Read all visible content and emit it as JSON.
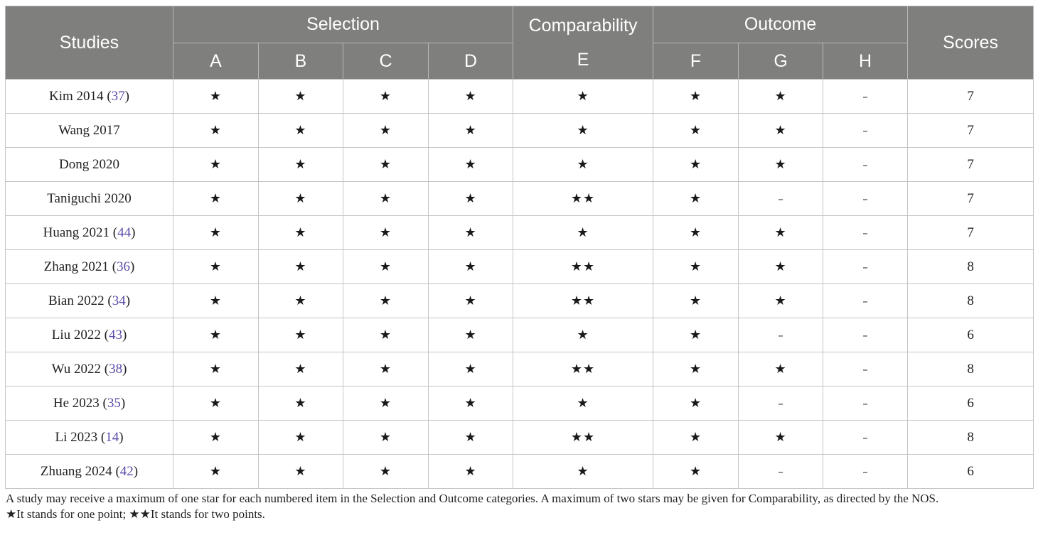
{
  "table": {
    "header": {
      "studies": "Studies",
      "selection": "Selection",
      "comparability": "Comparability",
      "outcome": "Outcome",
      "scores": "Scores",
      "sub": [
        "A",
        "B",
        "C",
        "D",
        "E",
        "F",
        "G",
        "H"
      ]
    },
    "rows": [
      {
        "study": "Kim 2014",
        "ref": "37",
        "cells": [
          "★",
          "★",
          "★",
          "★",
          "★",
          "★",
          "★",
          "–"
        ],
        "score": "7"
      },
      {
        "study": "Wang 2017",
        "ref": "",
        "cells": [
          "★",
          "★",
          "★",
          "★",
          "★",
          "★",
          "★",
          "–"
        ],
        "score": "7"
      },
      {
        "study": "Dong 2020",
        "ref": "",
        "cells": [
          "★",
          "★",
          "★",
          "★",
          "★",
          "★",
          "★",
          "–"
        ],
        "score": "7"
      },
      {
        "study": "Taniguchi 2020",
        "ref": "",
        "cells": [
          "★",
          "★",
          "★",
          "★",
          "★★",
          "★",
          "–",
          "–"
        ],
        "score": "7"
      },
      {
        "study": "Huang 2021",
        "ref": "44",
        "cells": [
          "★",
          "★",
          "★",
          "★",
          "★",
          "★",
          "★",
          "–"
        ],
        "score": "7"
      },
      {
        "study": "Zhang 2021",
        "ref": "36",
        "cells": [
          "★",
          "★",
          "★",
          "★",
          "★★",
          "★",
          "★",
          "–"
        ],
        "score": "8"
      },
      {
        "study": "Bian 2022",
        "ref": "34",
        "cells": [
          "★",
          "★",
          "★",
          "★",
          "★★",
          "★",
          "★",
          "–"
        ],
        "score": "8"
      },
      {
        "study": "Liu 2022",
        "ref": "43",
        "cells": [
          "★",
          "★",
          "★",
          "★",
          "★",
          "★",
          "–",
          "–"
        ],
        "score": "6"
      },
      {
        "study": "Wu 2022",
        "ref": "38",
        "cells": [
          "★",
          "★",
          "★",
          "★",
          "★★",
          "★",
          "★",
          "–"
        ],
        "score": "8"
      },
      {
        "study": "He 2023",
        "ref": "35",
        "cells": [
          "★",
          "★",
          "★",
          "★",
          "★",
          "★",
          "–",
          "–"
        ],
        "score": "6"
      },
      {
        "study": "Li 2023",
        "ref": "14",
        "cells": [
          "★",
          "★",
          "★",
          "★",
          "★★",
          "★",
          "★",
          "–"
        ],
        "score": "8"
      },
      {
        "study": "Zhuang 2024",
        "ref": "42",
        "cells": [
          "★",
          "★",
          "★",
          "★",
          "★",
          "★",
          "–",
          "–"
        ],
        "score": "6"
      }
    ]
  },
  "footnote": {
    "line1": "A study may receive a maximum of one star for each numbered item in the Selection and Outcome categories. A maximum of two stars may be given for Comparability, as directed by the NOS.",
    "line2": "★It stands for one point; ★★It stands for two points."
  }
}
